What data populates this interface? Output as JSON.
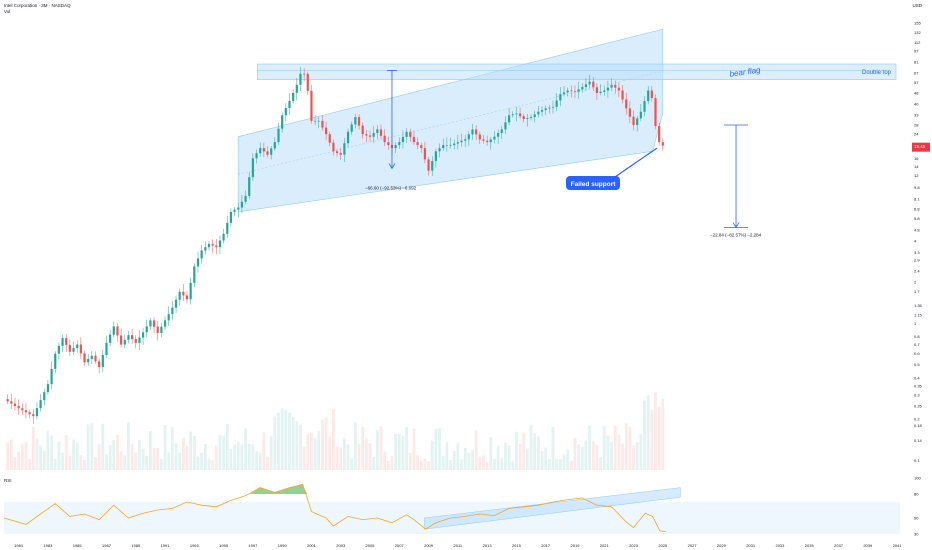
{
  "header": {
    "title": "Intel Corporation · 3M · NASDAQ",
    "volume_label": "Vol",
    "currency": "USD",
    "rsi_label": "RSI"
  },
  "colors": {
    "up": "#26a69a",
    "down": "#ef5350",
    "channel_fill": "#bbdefb",
    "channel_stroke": "#90caf9",
    "annotation": "#2962ff",
    "rsi_line": "#f5a623",
    "price_tag": "#f23645"
  },
  "chart_data": {
    "type": "candlestick",
    "title": "Intel Corporation · 3M · NASDAQ",
    "x_range": [
      1980.0,
      2041.2
    ],
    "y_scale": "log",
    "y_range": [
      0.085,
      200
    ],
    "x_ticks": [
      "1981",
      "1983",
      "1985",
      "1987",
      "1989",
      "1991",
      "1993",
      "1995",
      "1997",
      "1999",
      "2001",
      "2003",
      "2005",
      "2007",
      "2009",
      "2011",
      "2013",
      "2015",
      "2017",
      "2019",
      "2021",
      "2023",
      "2025",
      "2027",
      "2029",
      "2031",
      "2033",
      "2035",
      "2037",
      "2039",
      "2041"
    ],
    "y_ticks": [
      0.1,
      0.14,
      0.18,
      0.2,
      0.25,
      0.3,
      0.35,
      0.4,
      0.5,
      0.6,
      0.7,
      0.8,
      1.0,
      1.15,
      1.35,
      1.7,
      2.0,
      2.4,
      2.9,
      3.3,
      4.0,
      4.8,
      5.8,
      6.8,
      8.1,
      9.8,
      12.0,
      14.0,
      16.0,
      19.0,
      24.0,
      28.0,
      33.0,
      40.0,
      48.0,
      57.0,
      67.0,
      81.0,
      97.0,
      112.0,
      132.0,
      155.0
    ],
    "price_points": [
      [
        1980.0,
        0.28
      ],
      [
        1981.0,
        0.24
      ],
      [
        1982.0,
        0.21
      ],
      [
        1983.0,
        0.36
      ],
      [
        1983.5,
        0.6
      ],
      [
        1984.0,
        0.78
      ],
      [
        1984.5,
        0.62
      ],
      [
        1985.0,
        0.7
      ],
      [
        1985.5,
        0.52
      ],
      [
        1986.0,
        0.58
      ],
      [
        1986.5,
        0.48
      ],
      [
        1987.0,
        0.72
      ],
      [
        1987.5,
        0.95
      ],
      [
        1988.0,
        0.7
      ],
      [
        1988.5,
        0.82
      ],
      [
        1989.0,
        0.72
      ],
      [
        1989.5,
        0.86
      ],
      [
        1990.0,
        1.05
      ],
      [
        1990.5,
        0.85
      ],
      [
        1991.0,
        1.05
      ],
      [
        1991.5,
        1.3
      ],
      [
        1992.0,
        1.7
      ],
      [
        1992.5,
        1.5
      ],
      [
        1993.0,
        2.6
      ],
      [
        1993.5,
        3.4
      ],
      [
        1994.0,
        3.8
      ],
      [
        1994.5,
        3.6
      ],
      [
        1995.0,
        4.5
      ],
      [
        1995.5,
        6.5
      ],
      [
        1996.0,
        7.0
      ],
      [
        1996.5,
        8.5
      ],
      [
        1997.0,
        16.0
      ],
      [
        1997.5,
        19.0
      ],
      [
        1998.0,
        17.0
      ],
      [
        1998.5,
        21.0
      ],
      [
        1999.0,
        33.0
      ],
      [
        1999.5,
        42.0
      ],
      [
        2000.0,
        55.0
      ],
      [
        2000.4,
        74.0
      ],
      [
        2000.8,
        47.0
      ],
      [
        2001.0,
        30.0
      ],
      [
        2001.5,
        30.0
      ],
      [
        2002.0,
        24.0
      ],
      [
        2002.5,
        18.0
      ],
      [
        2003.0,
        17.0
      ],
      [
        2003.5,
        25.0
      ],
      [
        2004.0,
        32.0
      ],
      [
        2004.5,
        24.0
      ],
      [
        2005.0,
        23.0
      ],
      [
        2005.5,
        26.0
      ],
      [
        2006.0,
        21.0
      ],
      [
        2006.5,
        19.0
      ],
      [
        2007.0,
        21.0
      ],
      [
        2007.5,
        25.0
      ],
      [
        2008.0,
        21.0
      ],
      [
        2008.5,
        19.0
      ],
      [
        2009.0,
        13.0
      ],
      [
        2009.5,
        18.0
      ],
      [
        2010.0,
        20.0
      ],
      [
        2010.5,
        20.0
      ],
      [
        2011.0,
        21.0
      ],
      [
        2011.5,
        22.0
      ],
      [
        2012.0,
        26.0
      ],
      [
        2012.5,
        22.0
      ],
      [
        2013.0,
        21.0
      ],
      [
        2013.5,
        23.0
      ],
      [
        2014.0,
        26.0
      ],
      [
        2014.5,
        33.0
      ],
      [
        2015.0,
        34.0
      ],
      [
        2015.5,
        31.0
      ],
      [
        2016.0,
        32.0
      ],
      [
        2016.5,
        35.0
      ],
      [
        2017.0,
        37.0
      ],
      [
        2017.5,
        38.0
      ],
      [
        2018.0,
        47.0
      ],
      [
        2018.5,
        50.0
      ],
      [
        2019.0,
        49.0
      ],
      [
        2019.5,
        53.0
      ],
      [
        2020.0,
        58.0
      ],
      [
        2020.5,
        48.0
      ],
      [
        2021.0,
        50.0
      ],
      [
        2021.5,
        55.0
      ],
      [
        2022.0,
        50.0
      ],
      [
        2022.5,
        37.0
      ],
      [
        2023.0,
        28.0
      ],
      [
        2023.5,
        35.0
      ],
      [
        2024.0,
        50.0
      ],
      [
        2024.3,
        43.0
      ],
      [
        2024.6,
        22.0
      ],
      [
        2024.9,
        20.0
      ],
      [
        2025.2,
        19.5
      ]
    ],
    "last_price": "19.45",
    "channel": {
      "lower_start": [
        1996.0,
        6.5
      ],
      "lower_end": [
        2024.3,
        18.0
      ],
      "upper_start": [
        1996.0,
        23.0
      ],
      "upper_end": [
        2025.0,
        140.0
      ]
    },
    "double_top_zone": [
      60.0,
      78.0
    ],
    "annotations": {
      "double_top": "Double top",
      "bear_flag": "bear flag",
      "failed_support": "Failed support",
      "measure_1": "−66.60 (−92.53%) −6,692",
      "measure_2": "−22.84 (−82.57%) −2,284"
    },
    "rsi": {
      "y_range": [
        25,
        100
      ],
      "ticks": [
        30.0,
        50.0,
        80.0,
        100.0
      ],
      "band": [
        30,
        70
      ],
      "points": [
        [
          1980.0,
          50
        ],
        [
          1981.5,
          42
        ],
        [
          1982.5,
          55
        ],
        [
          1983.5,
          68
        ],
        [
          1984.5,
          52
        ],
        [
          1985.5,
          55
        ],
        [
          1986.5,
          48
        ],
        [
          1987.5,
          66
        ],
        [
          1988.5,
          50
        ],
        [
          1989.5,
          56
        ],
        [
          1990.5,
          60
        ],
        [
          1991.5,
          62
        ],
        [
          1992.5,
          70
        ],
        [
          1993.5,
          66
        ],
        [
          1994.5,
          64
        ],
        [
          1995.5,
          72
        ],
        [
          1996.5,
          78
        ],
        [
          1997.5,
          88
        ],
        [
          1998.5,
          82
        ],
        [
          1999.5,
          88
        ],
        [
          2000.4,
          92
        ],
        [
          2001.0,
          58
        ],
        [
          2002.0,
          50
        ],
        [
          2002.5,
          40
        ],
        [
          2003.5,
          52
        ],
        [
          2004.5,
          48
        ],
        [
          2005.5,
          50
        ],
        [
          2006.5,
          44
        ],
        [
          2007.5,
          54
        ],
        [
          2008.0,
          48
        ],
        [
          2008.8,
          36
        ],
        [
          2009.5,
          44
        ],
        [
          2010.5,
          50
        ],
        [
          2011.5,
          52
        ],
        [
          2012.5,
          55
        ],
        [
          2013.5,
          53
        ],
        [
          2014.5,
          62
        ],
        [
          2015.5,
          64
        ],
        [
          2016.5,
          66
        ],
        [
          2017.5,
          70
        ],
        [
          2018.5,
          73
        ],
        [
          2019.5,
          75
        ],
        [
          2020.5,
          66
        ],
        [
          2021.5,
          64
        ],
        [
          2022.5,
          45
        ],
        [
          2023.0,
          38
        ],
        [
          2023.8,
          56
        ],
        [
          2024.3,
          52
        ],
        [
          2024.8,
          34
        ],
        [
          2025.2,
          33
        ]
      ]
    },
    "volume_range": [
      0,
      1
    ]
  }
}
